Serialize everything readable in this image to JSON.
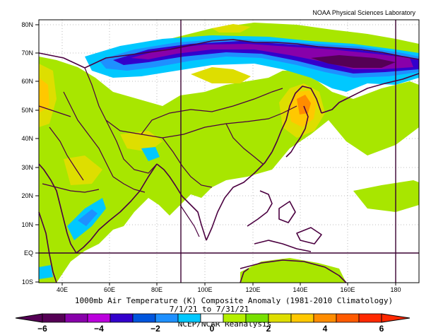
{
  "header": {
    "source": "NOAA Physical Sciences Laboratory"
  },
  "axes": {
    "lat_labels": [
      "80N",
      "70N",
      "60N",
      "50N",
      "40N",
      "30N",
      "20N",
      "10N",
      "EQ",
      "10S"
    ],
    "lon_labels": [
      "40E",
      "60E",
      "80E",
      "100E",
      "120E",
      "140E",
      "160E",
      "180"
    ]
  },
  "footer": {
    "title": "1000mb Air Temperature (K) Composite Anomaly (1981-2010 Climatology)",
    "dates": "7/1/21 to 7/31/21",
    "credit": "NCEP/NCAR Reanalysis"
  },
  "colorbar": {
    "ticks": [
      "−6",
      "−4",
      "−2",
      "0",
      "2",
      "4",
      "6"
    ],
    "colors": [
      "#550055",
      "#8800aa",
      "#bb00dd",
      "#3300cc",
      "#0055dd",
      "#1e90ff",
      "#00c8ff",
      "#ffffff",
      "#b4f000",
      "#78e000",
      "#dede00",
      "#ffc800",
      "#ff8c00",
      "#ff5a00",
      "#ff2800"
    ]
  },
  "map": {
    "ocean": "#ffffff",
    "coast_color": "#4b0040",
    "anomaly_fields": [
      {
        "value": -5,
        "color": "#550055"
      },
      {
        "value": -4,
        "color": "#8800aa"
      },
      {
        "value": -3,
        "color": "#3300cc"
      },
      {
        "value": -2,
        "color": "#1e90ff"
      },
      {
        "value": -1,
        "color": "#00c8ff"
      },
      {
        "value": 1,
        "color": "#a8e600"
      },
      {
        "value": 2,
        "color": "#dede00"
      },
      {
        "value": 3,
        "color": "#ffc800"
      },
      {
        "value": 4,
        "color": "#ff8c00"
      }
    ]
  }
}
